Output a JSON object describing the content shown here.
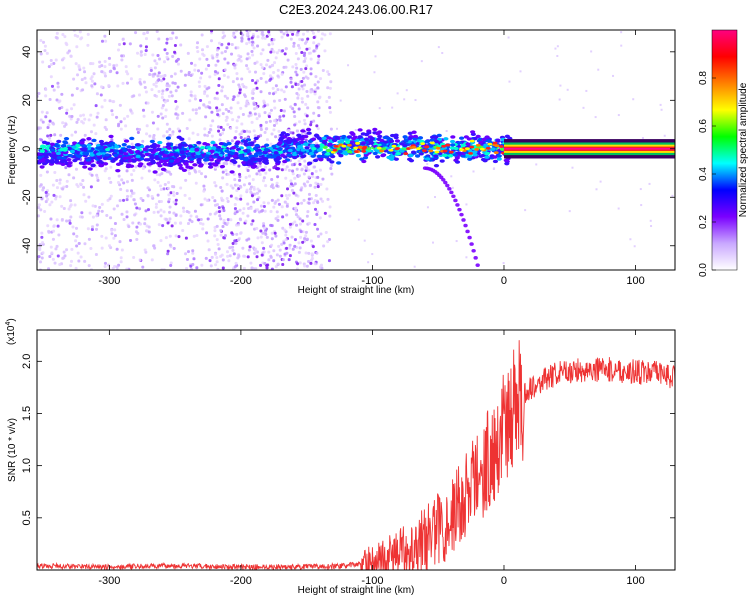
{
  "title": "C2E3.2024.243.06.00.R17",
  "colorbar": {
    "label": "Normalized spectral amplitude",
    "ticks": [
      "0.0",
      "0.2",
      "0.4",
      "0.6",
      "0.8"
    ],
    "tick_values": [
      0.0,
      0.2,
      0.4,
      0.6,
      0.8
    ],
    "range": [
      0,
      1
    ],
    "colors": [
      "#ffffff",
      "#c9a8ff",
      "#7a00ff",
      "#0000ff",
      "#00ffff",
      "#00ff00",
      "#ffff00",
      "#ff8000",
      "#ff0000",
      "#ff0080"
    ]
  },
  "chart_data": [
    {
      "type": "heatmap",
      "xlabel": "Height of straight line (km)",
      "ylabel": "Frequency (Hz)",
      "xlim": [
        -355,
        130
      ],
      "ylim": [
        -50,
        49
      ],
      "xticks": [
        -300,
        -200,
        -100,
        0,
        100
      ],
      "xtick_labels": [
        "-300",
        "-200",
        "-100",
        "0",
        "100"
      ],
      "yticks": [
        -40,
        -20,
        0,
        20,
        40
      ],
      "ytick_labels": [
        "-40",
        "-20",
        "0",
        "20",
        "40"
      ],
      "signal_band": {
        "center_hz": 0,
        "halfwidth_hz": 4
      },
      "curved_trace": {
        "x_start": -60,
        "x_end": -20,
        "y_start": -8,
        "y_end": -48
      }
    },
    {
      "type": "line",
      "xlabel": "Height of straight line (km)",
      "ylabel": "SNR (10 * v/v)",
      "scale_label": "(x10",
      "scale_exp": "4",
      "scale_close": ")",
      "xlim": [
        -355,
        130
      ],
      "ylim": [
        0,
        2.3
      ],
      "xticks": [
        -300,
        -200,
        -100,
        0,
        100
      ],
      "xtick_labels": [
        "-300",
        "-200",
        "-100",
        "0",
        "100"
      ],
      "yticks": [
        0.5,
        1.0,
        1.5,
        2.0
      ],
      "ytick_labels": [
        "0.5",
        "1.0",
        "1.5",
        "2.0"
      ],
      "series": [
        {
          "color": "#ee3333",
          "x": [
            -355,
            -300,
            -250,
            -200,
            -150,
            -120,
            -100,
            -80,
            -60,
            -40,
            -20,
            -10,
            0,
            10,
            20,
            40,
            60,
            80,
            100,
            120,
            130
          ],
          "y": [
            0.04,
            0.03,
            0.04,
            0.03,
            0.03,
            0.04,
            0.08,
            0.15,
            0.3,
            0.5,
            0.9,
            1.1,
            1.35,
            1.6,
            1.75,
            1.88,
            1.92,
            1.92,
            1.9,
            1.88,
            1.85
          ]
        }
      ]
    }
  ]
}
